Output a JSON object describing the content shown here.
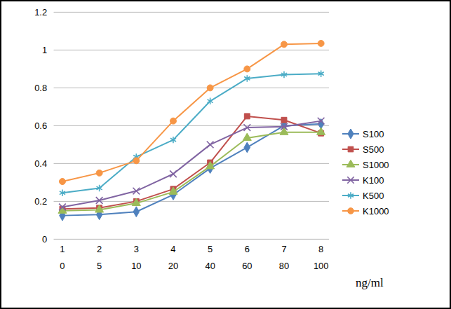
{
  "chart_data": {
    "type": "line",
    "categories": [
      "1",
      "2",
      "3",
      "4",
      "5",
      "6",
      "7",
      "8"
    ],
    "x_labels_2": [
      "0",
      "5",
      "10",
      "20",
      "40",
      "60",
      "80",
      "100"
    ],
    "x_label": "ng/ml",
    "ylim": [
      0,
      1.2
    ],
    "yticks": [
      0,
      0.2,
      0.4,
      0.6,
      0.8,
      1,
      1.2
    ],
    "grid": true,
    "legend": "right",
    "series": [
      {
        "name": "S100",
        "color": "#4F81BD",
        "marker": "diamond",
        "values": [
          0.125,
          0.13,
          0.145,
          0.235,
          0.375,
          0.485,
          0.6,
          0.61
        ]
      },
      {
        "name": "S500",
        "color": "#C0504D",
        "marker": "square",
        "values": [
          0.16,
          0.165,
          0.2,
          0.265,
          0.405,
          0.65,
          0.63,
          0.56
        ]
      },
      {
        "name": "S1000",
        "color": "#9BBB59",
        "marker": "triangle",
        "values": [
          0.15,
          0.155,
          0.19,
          0.25,
          0.385,
          0.535,
          0.565,
          0.565
        ]
      },
      {
        "name": "K100",
        "color": "#8064A2",
        "marker": "times",
        "values": [
          0.17,
          0.205,
          0.255,
          0.345,
          0.5,
          0.59,
          0.595,
          0.625
        ]
      },
      {
        "name": "K500",
        "color": "#4BACC6",
        "marker": "asterisk",
        "values": [
          0.245,
          0.27,
          0.435,
          0.525,
          0.73,
          0.85,
          0.87,
          0.875
        ]
      },
      {
        "name": "K1000",
        "color": "#F79646",
        "marker": "circle",
        "values": [
          0.305,
          0.35,
          0.415,
          0.625,
          0.8,
          0.9,
          1.03,
          1.035
        ]
      }
    ]
  }
}
